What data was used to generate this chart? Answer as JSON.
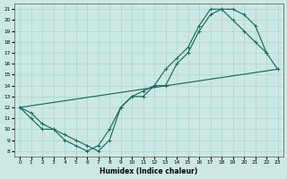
{
  "xlabel": "Humidex (Indice chaleur)",
  "bg_color": "#cce8e4",
  "grid_color": "#b0d8d2",
  "line_color": "#1a6b5a",
  "xlim": [
    -0.5,
    23.5
  ],
  "ylim": [
    7.5,
    21.5
  ],
  "xticks": [
    0,
    1,
    2,
    3,
    4,
    5,
    6,
    7,
    8,
    9,
    10,
    11,
    12,
    13,
    14,
    15,
    16,
    17,
    18,
    19,
    20,
    21,
    22,
    23
  ],
  "yticks": [
    8,
    9,
    10,
    11,
    12,
    13,
    14,
    15,
    16,
    17,
    18,
    19,
    20,
    21
  ],
  "line1_x": [
    0,
    1,
    2,
    3,
    4,
    5,
    6,
    7,
    8,
    9,
    10,
    11,
    12,
    13,
    14,
    15,
    16,
    17,
    18,
    19,
    20,
    21,
    22
  ],
  "line1_y": [
    12,
    11,
    10,
    10,
    9.5,
    9,
    8.5,
    8,
    9,
    12,
    13,
    13.5,
    14,
    15.5,
    16.5,
    17.5,
    19.5,
    21,
    21,
    21,
    20.5,
    19.5,
    17
  ],
  "line2_x": [
    0,
    1,
    2,
    3,
    4,
    5,
    6,
    7,
    8,
    9,
    10,
    11,
    12,
    13,
    14,
    15,
    16,
    17,
    18,
    19,
    20,
    21,
    22,
    23
  ],
  "line2_y": [
    12,
    11.5,
    10.5,
    10,
    9,
    8.5,
    8,
    8.5,
    10,
    12,
    13,
    13,
    14,
    14,
    16,
    17,
    19,
    20.5,
    21,
    20,
    19,
    18,
    17,
    15.5
  ],
  "line3_x": [
    0,
    23
  ],
  "line3_y": [
    12,
    15.5
  ]
}
